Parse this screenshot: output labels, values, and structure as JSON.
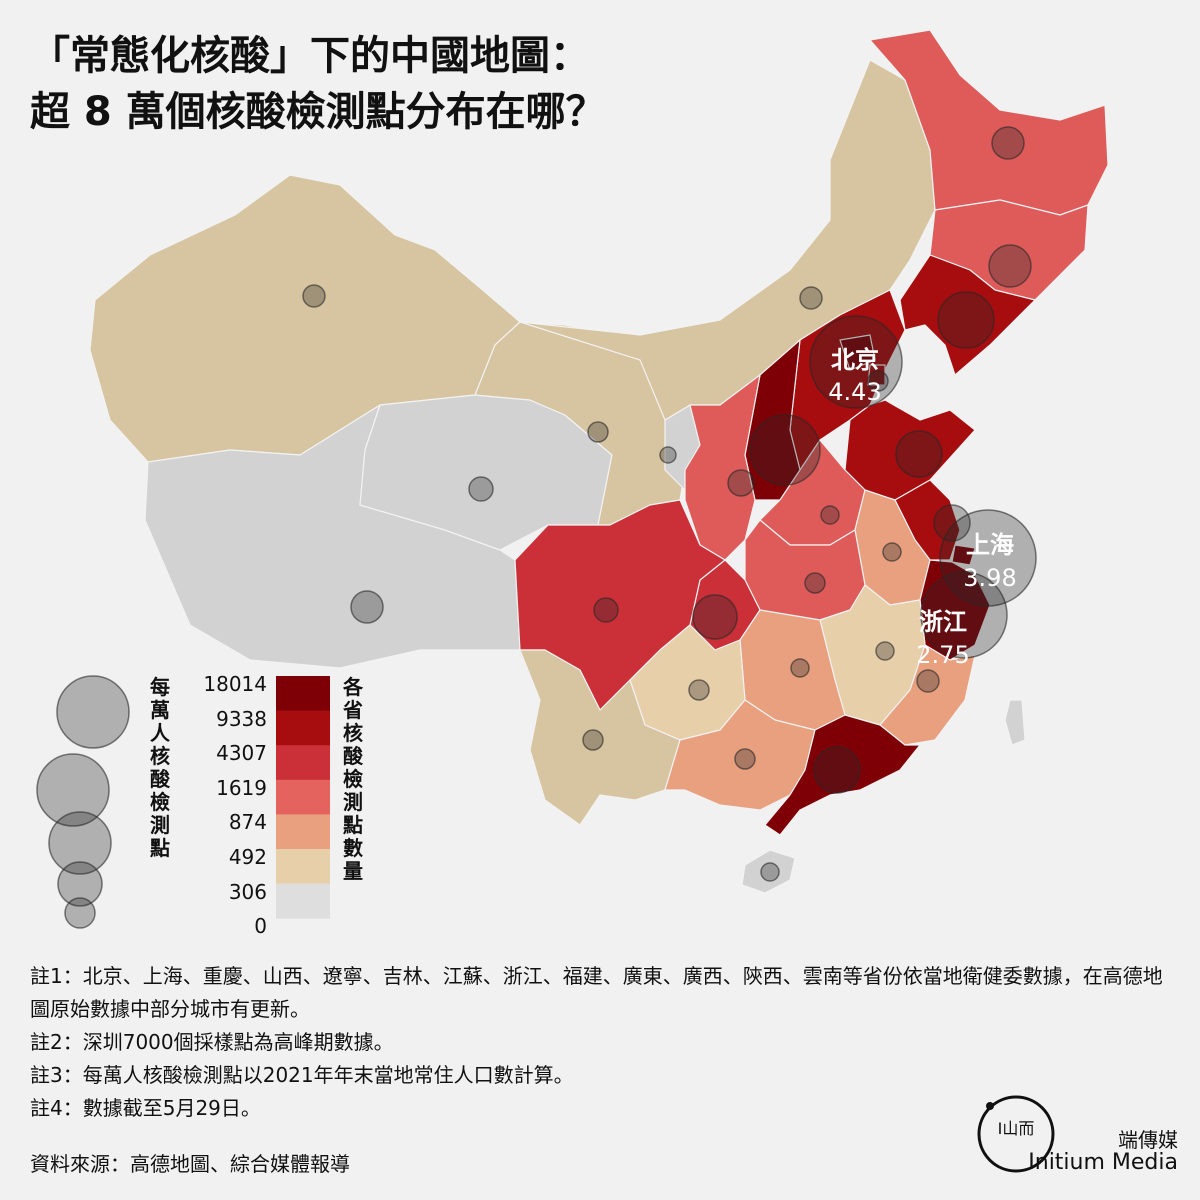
{
  "title": {
    "line1": "「常態化核酸」下的中國地圖：",
    "line2": "超 8 萬個核酸檢測點分布在哪？"
  },
  "highlights": [
    {
      "name": "北京",
      "value": "4.43"
    },
    {
      "name": "上海",
      "value": "3.98"
    },
    {
      "name": "浙江",
      "value": "2.75"
    }
  ],
  "legend": {
    "bubble_title": "每萬人核酸檢測點",
    "color_title": "各省核酸檢測點數量",
    "scale_labels": [
      "18014",
      "9338",
      "4307",
      "1619",
      "874",
      "492",
      "306",
      "0"
    ],
    "colors": [
      "#7e0006",
      "#a70c0e",
      "#cb2f38",
      "#e5635f",
      "#e8a07f",
      "#e7cfaa",
      "#dedede"
    ]
  },
  "notes": [
    "註1：北京、上海、重慶、山西、遼寧、吉林、江蘇、浙江、福建、廣東、廣西、陝西、雲南等省份依當地衛健委數據，在高德地圖原始數據中部分城市有更新。",
    "註2：深圳7000個採樣點為高峰期數據。",
    "註3：每萬人核酸檢測點以2021年年末當地常住人口數計算。",
    "註4：數據截至5月29日。"
  ],
  "source": "資料來源：高德地圖、綜合媒體報導",
  "brand": {
    "cn": "端傳媒",
    "en": "Initium Media",
    "logo_text": "Ⅰ山而"
  }
}
